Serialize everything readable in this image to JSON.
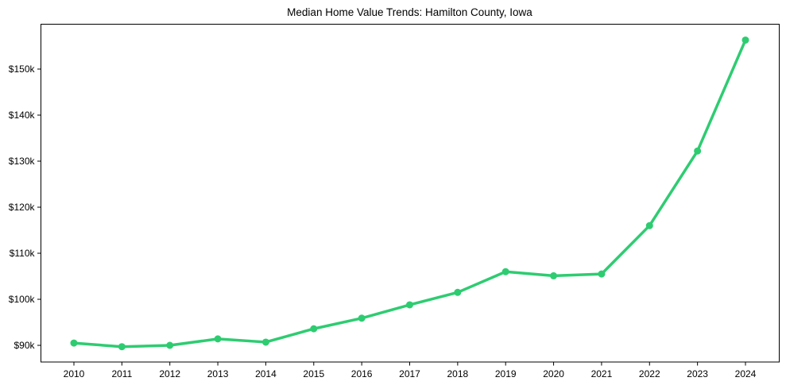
{
  "chart_data": {
    "type": "line",
    "title": "Median Home Value Trends: Hamilton County, Iowa",
    "xlabel": "",
    "ylabel": "",
    "categories": [
      "2010",
      "2011",
      "2012",
      "2013",
      "2014",
      "2015",
      "2016",
      "2017",
      "2018",
      "2019",
      "2020",
      "2021",
      "2022",
      "2023",
      "2024"
    ],
    "series": [
      {
        "name": "Median Home Value",
        "color": "#2ecc71",
        "values": [
          90500,
          89700,
          90000,
          91400,
          90700,
          93600,
          95900,
          98800,
          101500,
          106000,
          105100,
          105500,
          116000,
          132200,
          156300
        ]
      }
    ],
    "yticks": [
      90000,
      100000,
      110000,
      120000,
      130000,
      140000,
      150000
    ],
    "ytick_labels": [
      "$90k",
      "$100k",
      "$110k",
      "$120k",
      "$130k",
      "$140k",
      "$150k"
    ],
    "ylim": [
      86300,
      160900
    ],
    "grid": false,
    "legend": null
  }
}
